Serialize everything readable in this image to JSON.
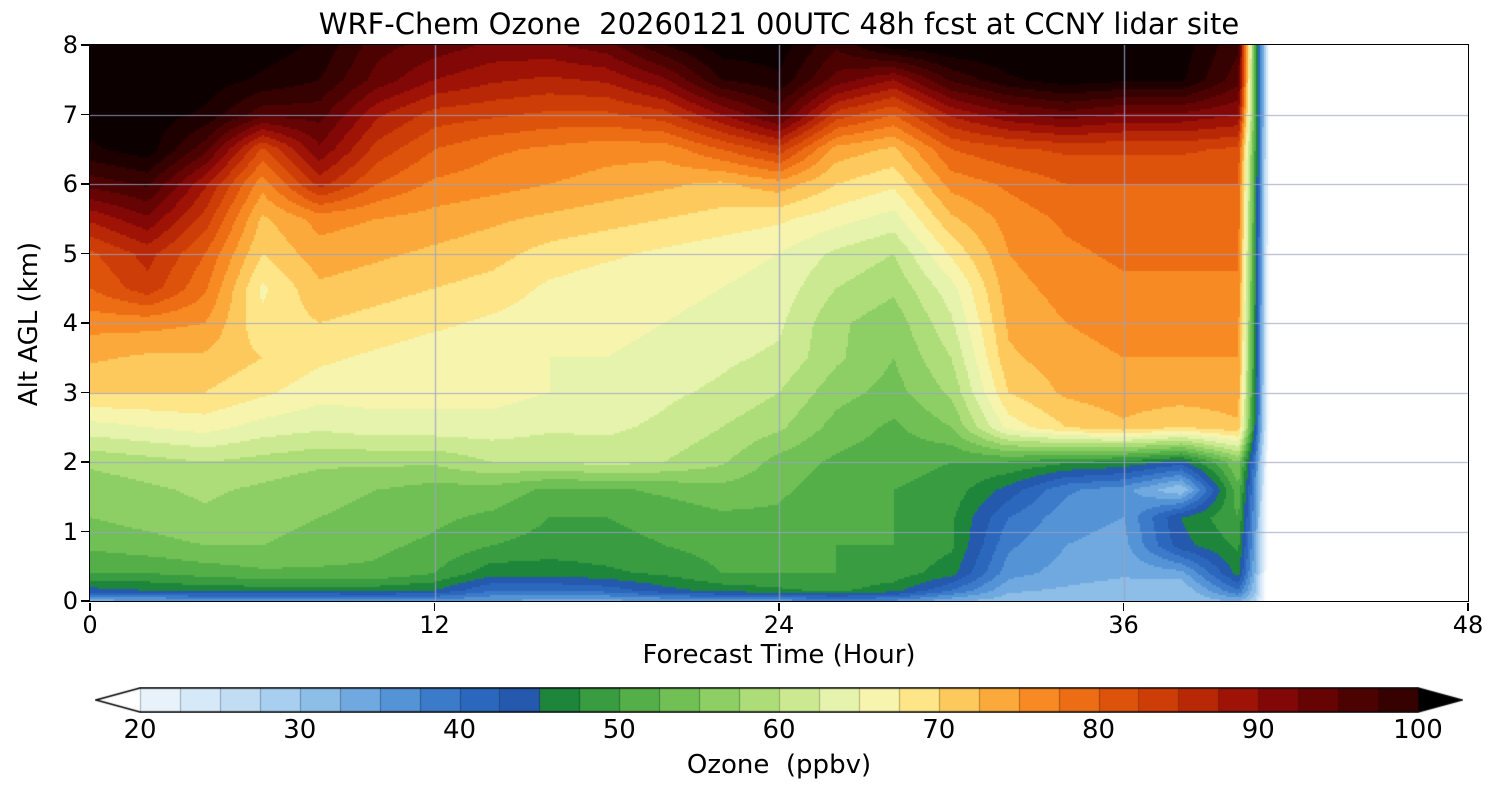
{
  "title": "WRF-Chem Ozone  20260121 00UTC 48h fcst at CCNY lidar site",
  "axes": {
    "xlabel": "Forecast Time (Hour)",
    "ylabel": "Alt AGL (km)",
    "xticks": [
      0,
      12,
      24,
      36,
      48
    ],
    "yticks": [
      0,
      1,
      2,
      3,
      4,
      5,
      6,
      7,
      8
    ],
    "xlim": [
      0,
      48
    ],
    "ylim": [
      0,
      8
    ],
    "grid_color": "#9aa2c4"
  },
  "colorbar": {
    "label": "Ozone  (ppbv)",
    "ticks": [
      20,
      30,
      40,
      50,
      60,
      70,
      80,
      90,
      100
    ],
    "body_range": [
      20,
      100
    ],
    "extend": "both",
    "level_step": 2.5,
    "under_color": "#ffffff",
    "over_color": "#000000"
  },
  "colormap": [
    [
      10,
      "#ffffff"
    ],
    [
      17.5,
      "#ffffff"
    ],
    [
      20,
      "#f0f7fd"
    ],
    [
      25,
      "#cde4f6"
    ],
    [
      30,
      "#9cc8ec"
    ],
    [
      35,
      "#609fda"
    ],
    [
      40,
      "#2e6fc4"
    ],
    [
      44,
      "#2458ac"
    ],
    [
      45,
      "#107a38"
    ],
    [
      47.5,
      "#2b923e"
    ],
    [
      50,
      "#46a642"
    ],
    [
      52.5,
      "#62b84d"
    ],
    [
      55,
      "#7fc85c"
    ],
    [
      57.5,
      "#9dd66d"
    ],
    [
      60,
      "#bce383"
    ],
    [
      62.5,
      "#daee9e"
    ],
    [
      65,
      "#f0f7ba"
    ],
    [
      67.5,
      "#fdf1a0"
    ],
    [
      70,
      "#fdd96f"
    ],
    [
      72.5,
      "#fdb94a"
    ],
    [
      75,
      "#fb992b"
    ],
    [
      77.5,
      "#f47a1b"
    ],
    [
      80,
      "#e65f0e"
    ],
    [
      82.5,
      "#d64708"
    ],
    [
      85,
      "#c43306"
    ],
    [
      87.5,
      "#ad1c06"
    ],
    [
      90,
      "#8f0a06"
    ],
    [
      92.5,
      "#730505"
    ],
    [
      95,
      "#590303"
    ],
    [
      97.5,
      "#400101"
    ],
    [
      100,
      "#2a0000"
    ],
    [
      102.5,
      "#120000"
    ],
    [
      106,
      "#000000"
    ]
  ],
  "chart_data": {
    "type": "heatmap",
    "title": "WRF-Chem Ozone  20260121 00UTC 48h fcst at CCNY lidar site",
    "xlabel": "Forecast Time (Hour)",
    "ylabel": "Alt AGL (km)",
    "units": "ppbv",
    "xlim": [
      0,
      48
    ],
    "ylim": [
      0,
      8
    ],
    "levels_step_ppbv": 2.5,
    "x_hours": [
      0,
      2,
      4,
      6,
      8,
      10,
      12,
      14,
      16,
      18,
      20,
      22,
      24,
      26,
      28,
      30,
      32,
      34,
      36,
      38,
      40,
      40.6,
      41.2,
      48
    ],
    "y_alt_km": [
      0,
      0.15,
      0.4,
      0.8,
      1.2,
      1.6,
      2,
      2.5,
      3,
      3.5,
      4,
      4.5,
      5,
      5.5,
      6,
      6.5,
      7,
      7.5,
      8
    ],
    "values_ppbv": [
      [
        34,
        34,
        35,
        35,
        35,
        36,
        36,
        35,
        34,
        34,
        35,
        36,
        36,
        38,
        37,
        33,
        31,
        30,
        30,
        30,
        33,
        28,
        10,
        10
      ],
      [
        44,
        45,
        46,
        46,
        46,
        46,
        45,
        40,
        40,
        41,
        44,
        46,
        47,
        48,
        46,
        40,
        33,
        32,
        31,
        30,
        40,
        30,
        10,
        10
      ],
      [
        50,
        50,
        51,
        52,
        52,
        52,
        50,
        46,
        46,
        47,
        48,
        50,
        50,
        50,
        49,
        46,
        36,
        34,
        33,
        34,
        46,
        32,
        10,
        10
      ],
      [
        53,
        54,
        55,
        55,
        54,
        53,
        52,
        50,
        49,
        49,
        50,
        51,
        51,
        50,
        50,
        48,
        38,
        35,
        34,
        44,
        48,
        34,
        10,
        10
      ],
      [
        55,
        56,
        57,
        56,
        55,
        54,
        53,
        52,
        50,
        50,
        51,
        52,
        52,
        50,
        50,
        48,
        40,
        36,
        35,
        45,
        50,
        35,
        10,
        10
      ],
      [
        56,
        57,
        58,
        57,
        56,
        55,
        54,
        54,
        52,
        52,
        53,
        54,
        53,
        51,
        50,
        49,
        44,
        38,
        36,
        30,
        52,
        36,
        10,
        10
      ],
      [
        58,
        59,
        60,
        59,
        58,
        58,
        58,
        60,
        60,
        61,
        60,
        58,
        54,
        52,
        51,
        50,
        50,
        48,
        47,
        44,
        55,
        38,
        10,
        10
      ],
      [
        64,
        65,
        66,
        64,
        63,
        64,
        64,
        64,
        63,
        63,
        62,
        60,
        58,
        54,
        52,
        55,
        66,
        70,
        72,
        70,
        72,
        44,
        10,
        10
      ],
      [
        70,
        70,
        70,
        68,
        66,
        66,
        66,
        66,
        65,
        64,
        63,
        62,
        60,
        56,
        54,
        58,
        70,
        73,
        74,
        74,
        74,
        45,
        10,
        10
      ],
      [
        73,
        72,
        72,
        70,
        68,
        67,
        66,
        66,
        65,
        65,
        64,
        63,
        62,
        58,
        55,
        60,
        72,
        74,
        75,
        75,
        75,
        46,
        10,
        10
      ],
      [
        76,
        76,
        75,
        68,
        70,
        69,
        68,
        67,
        66,
        66,
        65,
        64,
        63,
        58,
        56,
        62,
        73,
        75,
        76,
        76,
        76,
        46,
        10,
        10
      ],
      [
        80,
        84,
        78,
        67,
        72,
        71,
        70,
        69,
        67,
        66,
        66,
        65,
        64,
        60,
        58,
        64,
        74,
        76,
        77,
        77,
        77,
        47,
        10,
        10
      ],
      [
        82,
        86,
        80,
        70,
        74,
        73,
        72,
        71,
        69,
        68,
        67,
        66,
        65,
        62,
        60,
        68,
        75,
        77,
        78,
        78,
        78,
        47,
        10,
        10
      ],
      [
        88,
        92,
        84,
        72,
        76,
        75,
        74,
        73,
        72,
        71,
        70,
        69,
        68,
        66,
        64,
        72,
        76,
        78,
        79,
        79,
        79,
        48,
        10,
        10
      ],
      [
        96,
        98,
        88,
        76,
        86,
        80,
        77,
        76,
        75,
        74,
        73,
        72,
        74,
        70,
        68,
        76,
        78,
        80,
        80,
        80,
        80,
        48,
        10,
        10
      ],
      [
        102,
        104,
        96,
        82,
        92,
        84,
        80,
        78,
        77,
        76,
        76,
        80,
        84,
        74,
        72,
        80,
        82,
        83,
        83,
        83,
        82,
        49,
        10,
        10
      ],
      [
        104,
        104,
        102,
        96,
        96,
        88,
        84,
        83,
        82,
        82,
        84,
        90,
        96,
        84,
        80,
        88,
        92,
        94,
        92,
        92,
        90,
        50,
        10,
        10
      ],
      [
        104,
        104,
        104,
        102,
        100,
        94,
        90,
        88,
        87,
        88,
        92,
        100,
        102,
        94,
        90,
        98,
        102,
        104,
        103,
        103,
        96,
        50,
        10,
        10
      ],
      [
        105,
        105,
        105,
        104,
        102,
        96,
        94,
        92,
        92,
        94,
        100,
        104,
        104,
        98,
        104,
        105,
        105,
        105,
        105,
        104,
        98,
        50,
        10,
        10
      ]
    ]
  }
}
